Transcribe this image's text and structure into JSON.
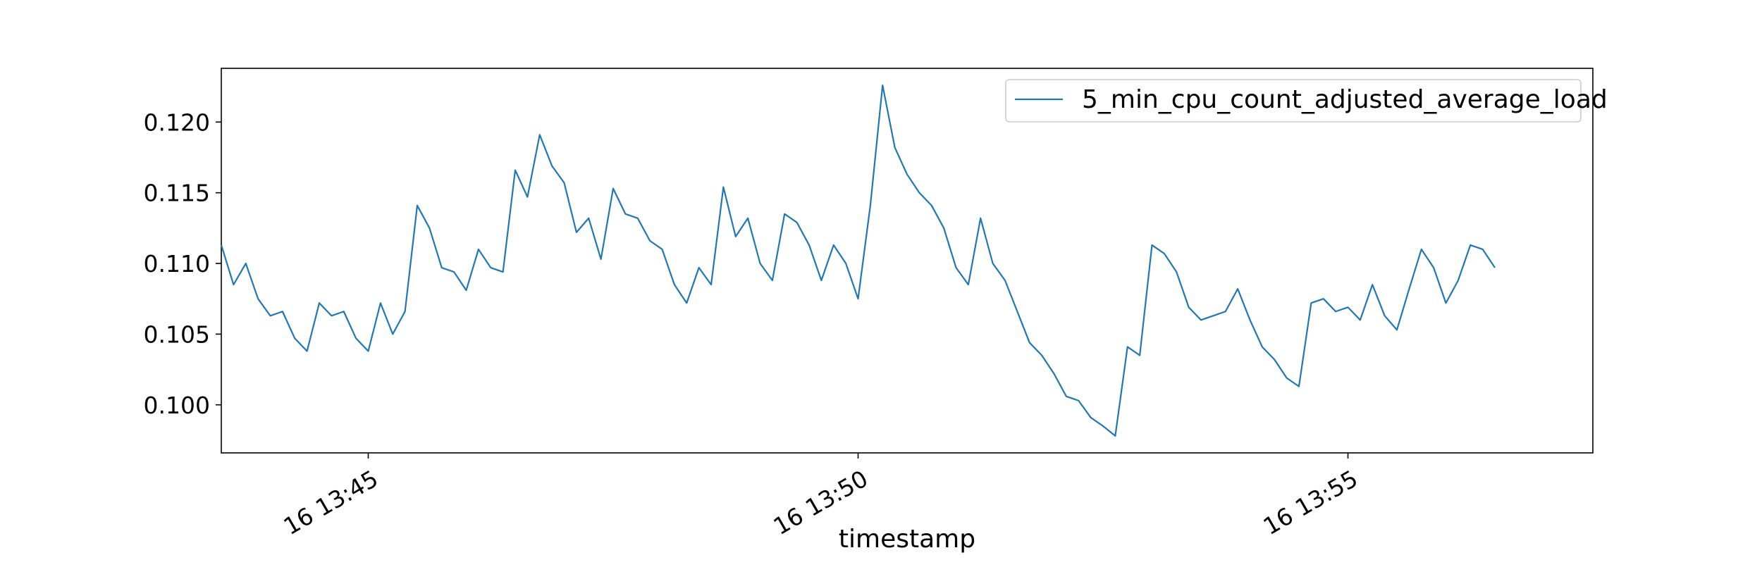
{
  "chart_data": {
    "type": "line",
    "title": "",
    "xlabel": "timestamp",
    "ylabel": "",
    "x_start": "16 13:43:30",
    "x_step_seconds": 7.5,
    "x_ticks": [
      {
        "value": "13:45:00",
        "label": "16 13:45"
      },
      {
        "value": "13:50:00",
        "label": "16 13:50"
      },
      {
        "value": "13:55:00",
        "label": "16 13:55"
      }
    ],
    "xlim": [
      "16 13:43:30",
      "16 13:57:30"
    ],
    "ylim": [
      0.0966,
      0.1238
    ],
    "y_ticks": [
      {
        "value": 0.1,
        "label": "0.100"
      },
      {
        "value": 0.105,
        "label": "0.105"
      },
      {
        "value": 0.11,
        "label": "0.110"
      },
      {
        "value": 0.115,
        "label": "0.115"
      },
      {
        "value": 0.12,
        "label": "0.120"
      }
    ],
    "grid": false,
    "legend_position": "upper right",
    "series": [
      {
        "name": "5_min_cpu_count_adjusted_average_load",
        "color": "#1f77b4",
        "values": [
          0.1113,
          0.1085,
          0.11,
          0.1075,
          0.1063,
          0.1066,
          0.1047,
          0.1038,
          0.1072,
          0.1063,
          0.1066,
          0.1047,
          0.1038,
          0.1072,
          0.105,
          0.1066,
          0.1141,
          0.1125,
          0.1097,
          0.1094,
          0.1081,
          0.111,
          0.1097,
          0.1094,
          0.1166,
          0.1147,
          0.1191,
          0.1169,
          0.1157,
          0.1122,
          0.1132,
          0.1103,
          0.1153,
          0.1135,
          0.1132,
          0.1116,
          0.111,
          0.1085,
          0.1072,
          0.1097,
          0.1085,
          0.1154,
          0.1119,
          0.1132,
          0.11,
          0.1088,
          0.1135,
          0.1129,
          0.1113,
          0.1088,
          0.1113,
          0.11,
          0.1075,
          0.1141,
          0.1226,
          0.1182,
          0.1163,
          0.115,
          0.1141,
          0.1125,
          0.1097,
          0.1085,
          0.1132,
          0.11,
          0.1088,
          0.1066,
          0.1044,
          0.1035,
          0.1022,
          0.1006,
          0.1003,
          0.0991,
          0.0985,
          0.0978,
          0.1041,
          0.1035,
          0.1113,
          0.1107,
          0.1094,
          0.1069,
          0.106,
          0.1063,
          0.1066,
          0.1082,
          0.106,
          0.1041,
          0.1032,
          0.1019,
          0.1013,
          0.1072,
          0.1075,
          0.1066,
          0.1069,
          0.106,
          0.1085,
          0.1063,
          0.1053,
          0.1082,
          0.111,
          0.1097,
          0.1072,
          0.1088,
          0.1113,
          0.111,
          0.1097
        ]
      }
    ]
  }
}
